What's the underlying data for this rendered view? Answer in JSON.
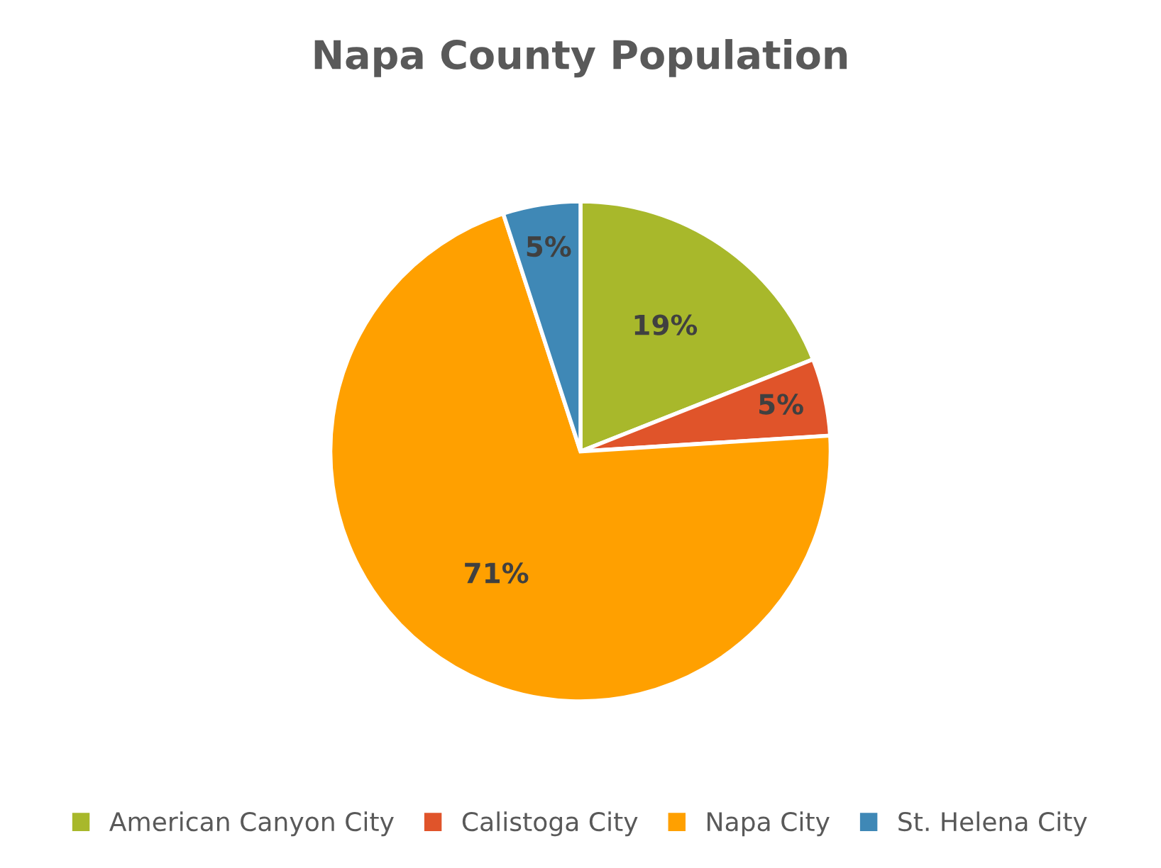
{
  "chart_data": {
    "type": "pie",
    "title": "Napa County Population",
    "categories": [
      "American Canyon City",
      "Calistoga City",
      "Napa City",
      "St. Helena City"
    ],
    "values": [
      19,
      5,
      71,
      5
    ],
    "colors": [
      "#a8b82b",
      "#e0542a",
      "#ffa000",
      "#3f88b6"
    ],
    "value_labels": [
      "19%",
      "5%",
      "71%",
      "5%"
    ],
    "legend": "bottom"
  }
}
